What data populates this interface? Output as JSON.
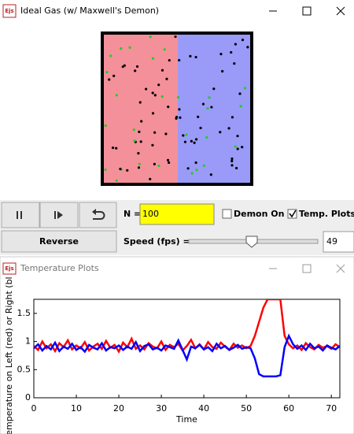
{
  "main_window": {
    "title": "Ideal Gas (w/ Maxwell's Demon)",
    "icon": "Ejs",
    "controls": {
      "reverse": "Reverse",
      "n_label": "N =",
      "n_value": "100",
      "demon": "Demon On",
      "plots": "Temp. Plots",
      "speed_label": "Speed (fps) =",
      "speed_value": "49"
    }
  },
  "plot_window": {
    "title": "Temperature Plots",
    "icon": "Ejs"
  },
  "chart_data": {
    "type": "line",
    "xlabel": "Time",
    "ylabel": "Temperature on Left (red) or Right (bl",
    "xlim": [
      0,
      72
    ],
    "ylim": [
      0,
      1.75
    ],
    "xticks": [
      0,
      10,
      20,
      30,
      40,
      50,
      60,
      70
    ],
    "yticks": [
      0,
      0.5,
      1,
      1.5
    ],
    "x": [
      0,
      1,
      2,
      3,
      4,
      5,
      6,
      7,
      8,
      9,
      10,
      11,
      12,
      13,
      14,
      15,
      16,
      17,
      18,
      19,
      20,
      21,
      22,
      23,
      24,
      25,
      26,
      27,
      28,
      29,
      30,
      31,
      32,
      33,
      34,
      35,
      36,
      37,
      38,
      39,
      40,
      41,
      42,
      43,
      44,
      45,
      46,
      47,
      48,
      49,
      50,
      51,
      52,
      53,
      54,
      55,
      56,
      57,
      58,
      59,
      60,
      61,
      62,
      63,
      64,
      65,
      66,
      67,
      68,
      69,
      70,
      71,
      72
    ],
    "series": [
      {
        "name": "Left",
        "color": "#ff0000",
        "values": [
          0.92,
          0.85,
          1.0,
          0.88,
          0.95,
          0.83,
          0.97,
          0.9,
          1.02,
          0.86,
          0.93,
          0.88,
          0.99,
          0.84,
          0.91,
          0.96,
          0.87,
          1.01,
          0.89,
          0.94,
          0.82,
          0.98,
          0.9,
          1.05,
          0.87,
          0.93,
          0.86,
          0.97,
          0.91,
          0.88,
          1.0,
          0.85,
          0.94,
          0.9,
          0.96,
          0.84,
          0.92,
          1.03,
          0.88,
          0.95,
          0.86,
          0.99,
          0.9,
          0.87,
          0.98,
          0.91,
          0.85,
          0.96,
          0.89,
          0.93,
          0.88,
          0.92,
          1.1,
          1.35,
          1.6,
          1.75,
          1.75,
          1.75,
          1.75,
          1.1,
          0.95,
          0.88,
          0.93,
          0.85,
          0.97,
          0.9,
          0.86,
          0.94,
          0.89,
          0.92,
          0.87,
          0.95,
          0.9
        ]
      },
      {
        "name": "Right",
        "color": "#0000ff",
        "values": [
          0.88,
          0.95,
          0.84,
          0.92,
          0.86,
          0.98,
          0.83,
          0.91,
          0.87,
          0.96,
          0.85,
          0.9,
          0.82,
          0.94,
          0.89,
          0.86,
          0.97,
          0.84,
          0.9,
          0.88,
          0.93,
          0.85,
          0.91,
          0.87,
          0.99,
          0.83,
          0.92,
          0.95,
          0.86,
          0.89,
          0.84,
          0.93,
          0.9,
          0.87,
          1.02,
          0.85,
          0.68,
          0.91,
          0.88,
          0.94,
          0.86,
          0.9,
          0.83,
          0.96,
          0.88,
          0.92,
          0.85,
          0.89,
          0.94,
          0.87,
          0.9,
          0.88,
          0.7,
          0.42,
          0.38,
          0.38,
          0.38,
          0.38,
          0.4,
          0.9,
          1.1,
          0.95,
          0.87,
          0.93,
          0.85,
          0.96,
          0.88,
          0.91,
          0.84,
          0.93,
          0.89,
          0.86,
          0.92
        ]
      }
    ]
  }
}
